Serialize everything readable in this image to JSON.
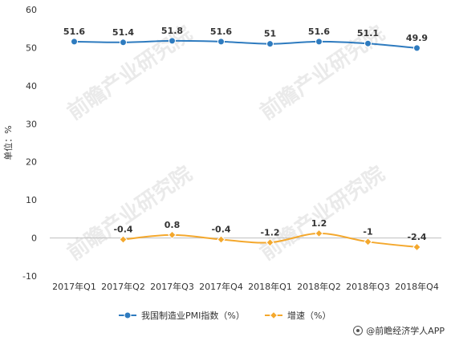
{
  "chart_data": {
    "type": "line",
    "categories": [
      "2017年Q1",
      "2017年Q2",
      "2017年Q3",
      "2017年Q4",
      "2018年Q1",
      "2018年Q2",
      "2018年Q3",
      "2018年Q4"
    ],
    "series": [
      {
        "name": "我国制造业PMI指数（%）",
        "values": [
          51.6,
          51.4,
          51.8,
          51.6,
          51,
          51.6,
          51.1,
          49.9
        ],
        "labels": [
          "51.6",
          "51.4",
          "51.8",
          "51.6",
          "51",
          "51.6",
          "51.1",
          "49.9"
        ],
        "color": "#2e7bbf",
        "marker": "circle"
      },
      {
        "name": "增速（%）",
        "values": [
          null,
          -0.4,
          0.8,
          -0.4,
          -1.2,
          1.2,
          -1,
          -2.4
        ],
        "labels": [
          "",
          "-0.4",
          "0.8",
          "-0.4",
          "-1.2",
          "1.2",
          "-1",
          "-2.4"
        ],
        "color": "#f4a82d",
        "marker": "diamond"
      }
    ],
    "ylabel": "单位：%",
    "ylim": [
      -10,
      60
    ],
    "yticks": [
      "60",
      "50",
      "40",
      "30",
      "20",
      "10",
      "0",
      "-10"
    ],
    "ytick_values": [
      60,
      50,
      40,
      30,
      20,
      10,
      0,
      -10
    ],
    "grid": false,
    "legend_position": "bottom"
  },
  "watermark": "前瞻产业研究院",
  "credit": "@前瞻经济学人APP"
}
